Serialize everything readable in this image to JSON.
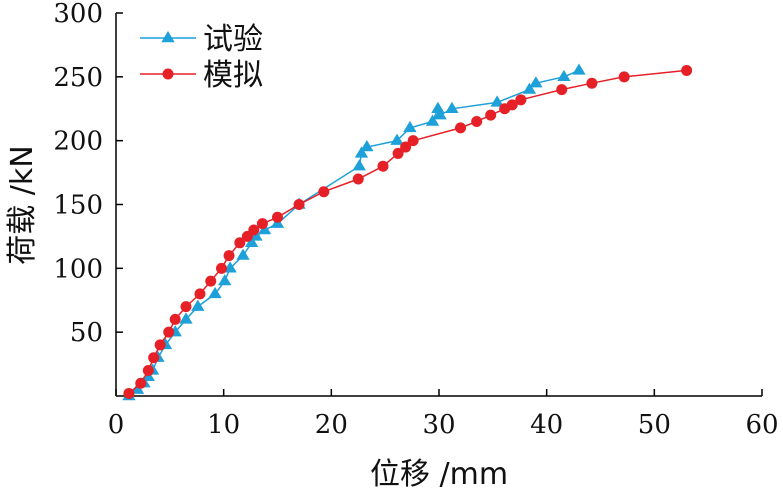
{
  "chart_data": {
    "type": "line",
    "title": "",
    "xlabel": "位移 /mm",
    "ylabel": "荷载 /kN",
    "xlim": [
      0,
      60
    ],
    "ylim": [
      0,
      300
    ],
    "xticks": [
      0,
      10,
      20,
      30,
      40,
      50,
      60
    ],
    "yticks": [
      50,
      100,
      150,
      200,
      250,
      300
    ],
    "grid": false,
    "legend_position": "top-left",
    "series": [
      {
        "name": "试验",
        "color": "#1ea0d8",
        "marker": "triangle",
        "points": [
          [
            1.2,
            0
          ],
          [
            2.0,
            5
          ],
          [
            2.6,
            10
          ],
          [
            3.0,
            15
          ],
          [
            3.4,
            20
          ],
          [
            3.9,
            30
          ],
          [
            4.6,
            40
          ],
          [
            5.5,
            50
          ],
          [
            6.5,
            60
          ],
          [
            7.6,
            70
          ],
          [
            9.2,
            80
          ],
          [
            10.1,
            90
          ],
          [
            10.6,
            100
          ],
          [
            11.8,
            110
          ],
          [
            12.6,
            120
          ],
          [
            13.0,
            125
          ],
          [
            13.8,
            130
          ],
          [
            15.0,
            135
          ],
          [
            17.0,
            150
          ],
          [
            22.6,
            180
          ],
          [
            22.8,
            190
          ],
          [
            23.3,
            195
          ],
          [
            26.1,
            200
          ],
          [
            27.3,
            210
          ],
          [
            29.4,
            215
          ],
          [
            29.9,
            225
          ],
          [
            30.1,
            220
          ],
          [
            31.2,
            225
          ],
          [
            35.4,
            230
          ],
          [
            38.4,
            240
          ],
          [
            39.0,
            245
          ],
          [
            41.6,
            250
          ],
          [
            43.0,
            255
          ]
        ]
      },
      {
        "name": "模拟",
        "color": "#e52127",
        "marker": "circle",
        "points": [
          [
            1.2,
            2
          ],
          [
            2.3,
            10
          ],
          [
            3.0,
            20
          ],
          [
            3.5,
            30
          ],
          [
            4.1,
            40
          ],
          [
            4.9,
            50
          ],
          [
            5.5,
            60
          ],
          [
            6.5,
            70
          ],
          [
            7.8,
            80
          ],
          [
            8.8,
            90
          ],
          [
            9.8,
            100
          ],
          [
            10.5,
            110
          ],
          [
            11.5,
            120
          ],
          [
            12.2,
            125
          ],
          [
            12.8,
            130
          ],
          [
            13.6,
            135
          ],
          [
            15.0,
            140
          ],
          [
            17.0,
            150
          ],
          [
            19.3,
            160
          ],
          [
            22.5,
            170
          ],
          [
            24.8,
            180
          ],
          [
            26.2,
            190
          ],
          [
            26.9,
            195
          ],
          [
            27.6,
            200
          ],
          [
            32.0,
            210
          ],
          [
            33.5,
            215
          ],
          [
            34.8,
            220
          ],
          [
            36.1,
            225
          ],
          [
            36.8,
            228
          ],
          [
            37.6,
            232
          ],
          [
            41.4,
            240
          ],
          [
            44.2,
            245
          ],
          [
            47.2,
            250
          ],
          [
            53.0,
            255
          ]
        ]
      }
    ]
  }
}
